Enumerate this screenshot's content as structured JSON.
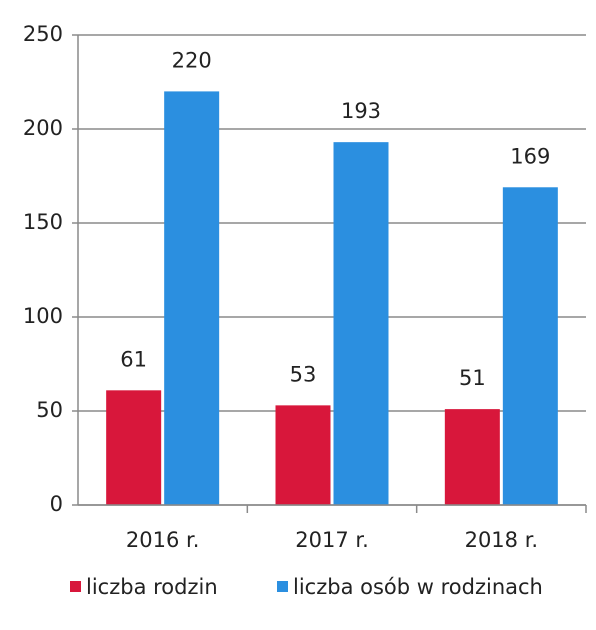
{
  "chart_data": {
    "type": "bar",
    "categories": [
      "2016 r.",
      "2017 r.",
      "2018 r."
    ],
    "series": [
      {
        "name": "liczba rodzin",
        "color": "#d8173b",
        "values": [
          61,
          53,
          51
        ]
      },
      {
        "name": "liczba osób w rodzinach",
        "color": "#2b8fe0",
        "values": [
          220,
          193,
          169
        ]
      }
    ],
    "ylim": [
      0,
      250
    ],
    "yticks": [
      0,
      50,
      100,
      150,
      200,
      250
    ],
    "grid": true,
    "legend": "bottom"
  }
}
